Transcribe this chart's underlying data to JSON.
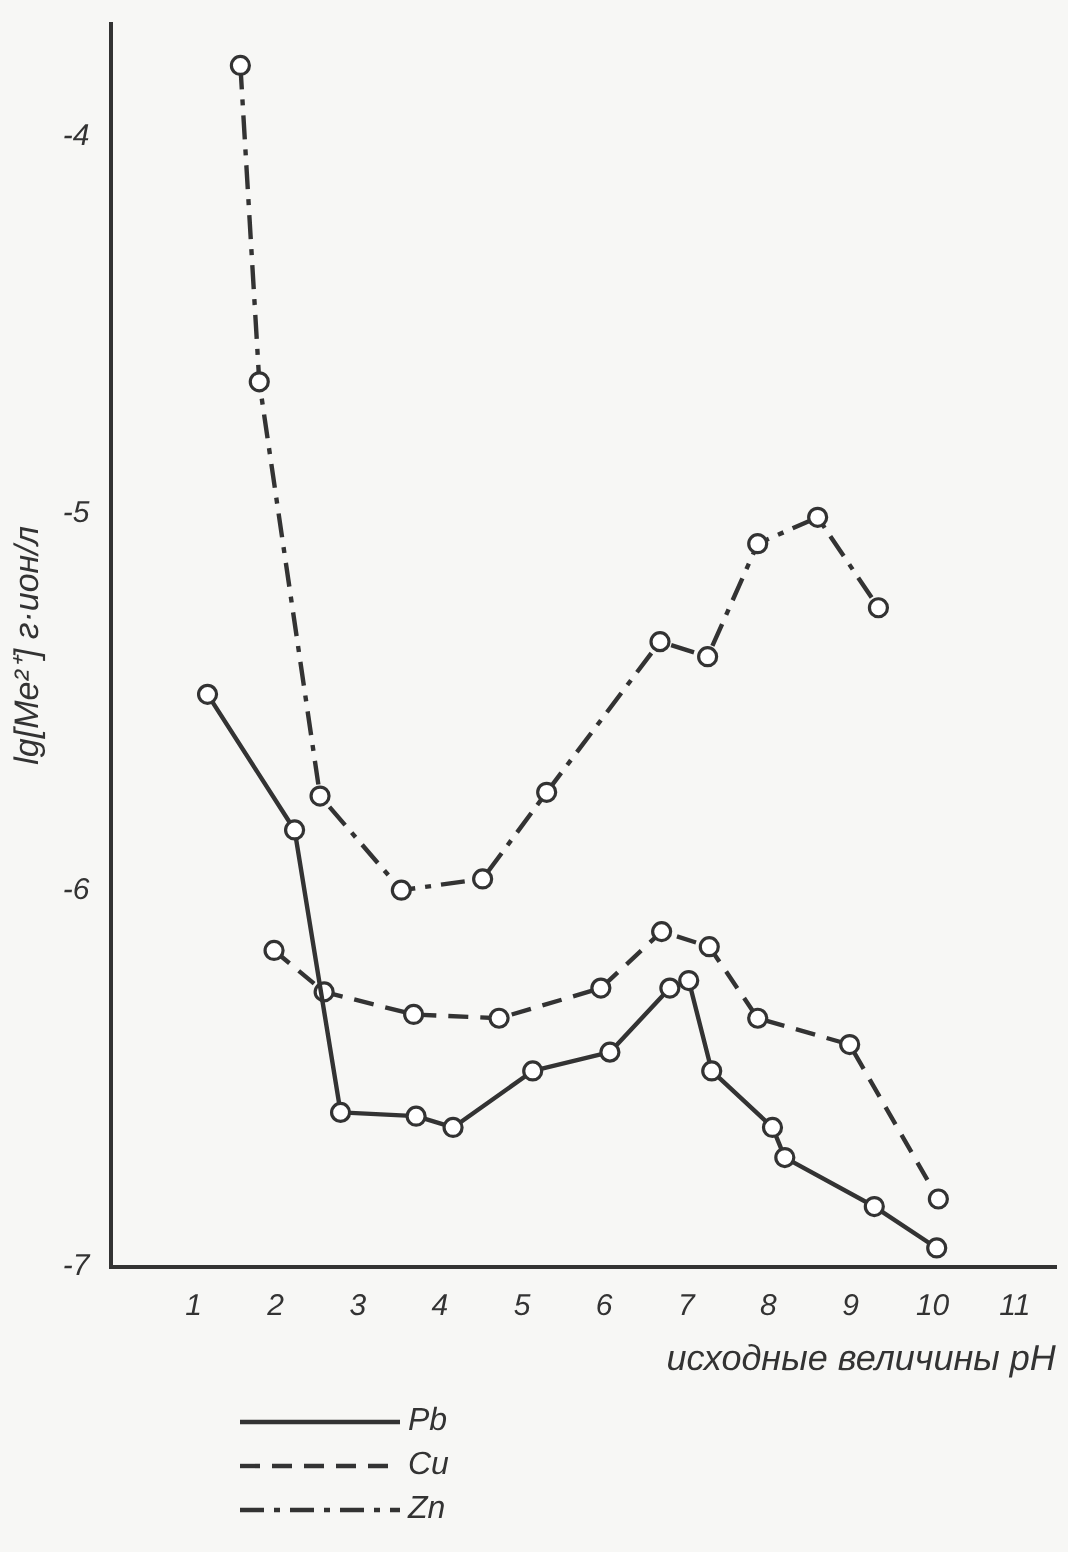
{
  "chart_data": {
    "type": "line",
    "xlabel": "исходные величины pH",
    "ylabel": "lg[Me²⁺] г·ион/л",
    "xlim": [
      0,
      11.5
    ],
    "xticks": [
      1,
      2,
      3,
      4,
      5,
      6,
      7,
      8,
      9,
      10,
      11
    ],
    "ylim": [
      -7,
      -3.7
    ],
    "yticks": [
      -7,
      -6,
      -5,
      -4
    ],
    "grid": false,
    "legend": "bottom left",
    "marker": "circle",
    "series": [
      {
        "name": "Pb",
        "color": "#333333",
        "line_style": "solid",
        "x": [
          1.17,
          2.23,
          2.79,
          3.71,
          4.16,
          5.13,
          6.07,
          6.8,
          7.03,
          7.31,
          8.05,
          8.2,
          9.29,
          10.05
        ],
        "values": [
          -5.48,
          -5.84,
          -6.59,
          -6.6,
          -6.63,
          -6.48,
          -6.43,
          -6.26,
          -6.24,
          -6.48,
          -6.63,
          -6.71,
          -6.84,
          -6.95
        ]
      },
      {
        "name": "Cu",
        "color": "#333333",
        "line_style": "dashed",
        "x": [
          1.98,
          2.59,
          3.68,
          4.72,
          5.96,
          6.7,
          7.28,
          7.87,
          8.99,
          10.07
        ],
        "values": [
          -6.16,
          -6.27,
          -6.33,
          -6.34,
          -6.26,
          -6.11,
          -6.15,
          -6.34,
          -6.41,
          -6.82
        ]
      },
      {
        "name": "Zn",
        "color": "#333333",
        "line_style": "dashdot",
        "x": [
          1.57,
          1.8,
          2.54,
          3.53,
          4.52,
          5.3,
          6.68,
          7.26,
          7.87,
          8.6,
          9.34
        ],
        "values": [
          -3.81,
          -4.65,
          -5.75,
          -6.0,
          -5.97,
          -5.74,
          -5.34,
          -5.38,
          -5.08,
          -5.01,
          -5.25
        ]
      }
    ]
  }
}
